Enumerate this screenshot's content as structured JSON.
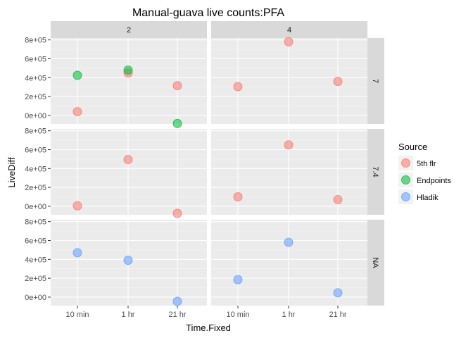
{
  "chart_data": {
    "type": "scatter",
    "title": "Manual-guava live counts:PFA",
    "xlabel": "Time.Fixed",
    "ylabel": "LiveDiff",
    "categories": [
      "10 min",
      "1 hr",
      "21 hr"
    ],
    "y_ticks": [
      "0e+00",
      "2e+05",
      "4e+05",
      "6e+05",
      "8e+05"
    ],
    "y_tick_values": [
      0,
      200000,
      400000,
      600000,
      800000
    ],
    "ylim": [
      -90000,
      820000
    ],
    "facet_cols": [
      "2",
      "4"
    ],
    "facet_rows": [
      "7",
      "7.4",
      "NA"
    ],
    "legend": {
      "title": "Source",
      "position": "right",
      "entries": [
        {
          "name": "5th flr",
          "color": "#F8766D"
        },
        {
          "name": "Endpoints",
          "color": "#00BA38"
        },
        {
          "name": "Hladik",
          "color": "#619CFF"
        }
      ]
    },
    "points": [
      {
        "col": "2",
        "row": "7",
        "x": "10 min",
        "y": 40000,
        "source": "5th flr"
      },
      {
        "col": "2",
        "row": "7",
        "x": "10 min",
        "y": 425000,
        "source": "Endpoints"
      },
      {
        "col": "2",
        "row": "7",
        "x": "1 hr",
        "y": 450000,
        "source": "5th flr"
      },
      {
        "col": "2",
        "row": "7",
        "x": "1 hr",
        "y": 480000,
        "source": "Endpoints"
      },
      {
        "col": "2",
        "row": "7",
        "x": "21 hr",
        "y": 315000,
        "source": "5th flr"
      },
      {
        "col": "2",
        "row": "7",
        "x": "21 hr",
        "y": -85000,
        "source": "Endpoints"
      },
      {
        "col": "4",
        "row": "7",
        "x": "10 min",
        "y": 305000,
        "source": "5th flr"
      },
      {
        "col": "4",
        "row": "7",
        "x": "1 hr",
        "y": 780000,
        "source": "5th flr"
      },
      {
        "col": "4",
        "row": "7",
        "x": "21 hr",
        "y": 360000,
        "source": "5th flr"
      },
      {
        "col": "2",
        "row": "7.4",
        "x": "10 min",
        "y": 5000,
        "source": "5th flr"
      },
      {
        "col": "2",
        "row": "7.4",
        "x": "1 hr",
        "y": 495000,
        "source": "5th flr"
      },
      {
        "col": "2",
        "row": "7.4",
        "x": "21 hr",
        "y": -75000,
        "source": "5th flr"
      },
      {
        "col": "4",
        "row": "7.4",
        "x": "10 min",
        "y": 100000,
        "source": "5th flr"
      },
      {
        "col": "4",
        "row": "7.4",
        "x": "1 hr",
        "y": 650000,
        "source": "5th flr"
      },
      {
        "col": "4",
        "row": "7.4",
        "x": "21 hr",
        "y": 70000,
        "source": "5th flr"
      },
      {
        "col": "2",
        "row": "NA",
        "x": "10 min",
        "y": 470000,
        "source": "Hladik"
      },
      {
        "col": "2",
        "row": "NA",
        "x": "1 hr",
        "y": 390000,
        "source": "Hladik"
      },
      {
        "col": "2",
        "row": "NA",
        "x": "21 hr",
        "y": -45000,
        "source": "Hladik"
      },
      {
        "col": "4",
        "row": "NA",
        "x": "10 min",
        "y": 185000,
        "source": "Hladik"
      },
      {
        "col": "4",
        "row": "NA",
        "x": "1 hr",
        "y": 580000,
        "source": "Hladik"
      },
      {
        "col": "4",
        "row": "NA",
        "x": "21 hr",
        "y": 45000,
        "source": "Hladik"
      }
    ],
    "grid": true
  }
}
